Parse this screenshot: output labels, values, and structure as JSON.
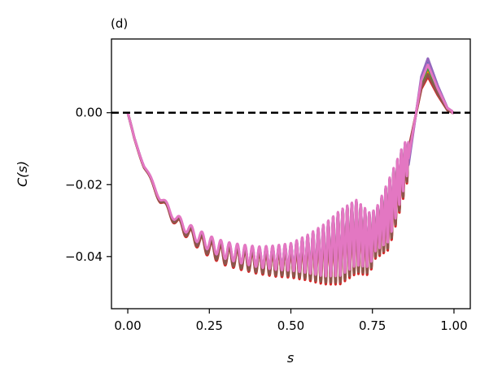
{
  "chart_data": {
    "type": "line",
    "panel_label": "(d)",
    "xlabel": "s",
    "ylabel": "C(s)",
    "xlim": [
      -0.05,
      1.05
    ],
    "ylim": [
      -0.0545,
      0.0205
    ],
    "xticks": [
      {
        "value": 0.0,
        "label": "0.00"
      },
      {
        "value": 0.25,
        "label": "0.25"
      },
      {
        "value": 0.5,
        "label": "0.50"
      },
      {
        "value": 0.75,
        "label": "0.75"
      },
      {
        "value": 1.0,
        "label": "1.00"
      }
    ],
    "yticks": [
      {
        "value": 0.0,
        "label": "0.00"
      },
      {
        "value": -0.02,
        "label": "−0.02"
      },
      {
        "value": -0.04,
        "label": "−0.04"
      }
    ],
    "reference_line": {
      "y": 0.0,
      "style": "dashed",
      "color": "#000000"
    },
    "grid": false,
    "legend": "none",
    "series_colors": [
      "#1f77b4",
      "#ff7f0e",
      "#2ca02c",
      "#d62728",
      "#9467bd",
      "#8c564b",
      "#e377c2"
    ],
    "trend": {
      "x": [
        0.0,
        0.02,
        0.05,
        0.1,
        0.15,
        0.2,
        0.25,
        0.3,
        0.35,
        0.4,
        0.45,
        0.5,
        0.55,
        0.6,
        0.65,
        0.7,
        0.74,
        0.77,
        0.8,
        0.83,
        0.86,
        0.88,
        0.9,
        0.92,
        0.95,
        0.98,
        1.0
      ],
      "y": [
        0.0,
        -0.007,
        -0.015,
        -0.024,
        -0.03,
        -0.034,
        -0.037,
        -0.039,
        -0.04,
        -0.0408,
        -0.041,
        -0.0408,
        -0.04,
        -0.039,
        -0.037,
        -0.034,
        -0.036,
        -0.032,
        -0.028,
        -0.02,
        -0.012,
        -0.002,
        0.008,
        0.012,
        0.006,
        0.001,
        0.0
      ]
    },
    "oscillation_amplitude": {
      "x": [
        0.0,
        0.1,
        0.2,
        0.3,
        0.4,
        0.5,
        0.55,
        0.6,
        0.65,
        0.7,
        0.74,
        0.76,
        0.8,
        0.84,
        0.87,
        0.9
      ],
      "a": [
        0.0,
        0.001,
        0.0018,
        0.0025,
        0.003,
        0.004,
        0.0055,
        0.0075,
        0.0095,
        0.0095,
        0.008,
        0.006,
        0.009,
        0.007,
        0.004,
        0.0
      ]
    },
    "series_amplitude_scale": [
      0.97,
      1.02,
      0.99,
      1.04,
      0.98,
      1.01,
      0.96
    ],
    "series_offset": [
      0.0003,
      -0.0004,
      0.0001,
      -0.0009,
      0.0004,
      -0.0006,
      0.0007
    ],
    "series_peak_scale": [
      1.15,
      0.95,
      1.05,
      0.85,
      1.25,
      0.9,
      1.1
    ]
  }
}
